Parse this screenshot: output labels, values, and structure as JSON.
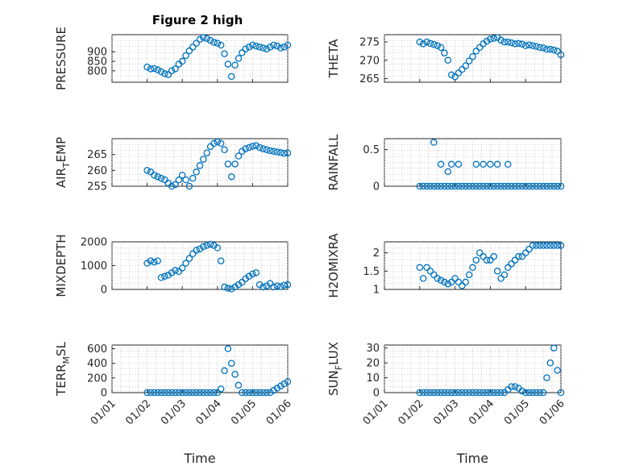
{
  "figure": {
    "title": "Figure 2 high",
    "marker_color": "#0072bd",
    "xlabel": "Time",
    "xticks": [
      "01/01",
      "01/02",
      "01/03",
      "01/04",
      "01/05",
      "01/06"
    ]
  },
  "chart_data": [
    {
      "type": "scatter",
      "id": "pressure",
      "ylabel": "PRESSURE",
      "title": "Figure 2 high",
      "xlim": [
        0,
        5
      ],
      "ylim": [
        740,
        990
      ],
      "yticks": [
        800,
        850,
        900
      ],
      "ytick_labels": [
        "800",
        "850",
        "900"
      ],
      "x": [
        1.0,
        1.1,
        1.2,
        1.3,
        1.4,
        1.5,
        1.6,
        1.7,
        1.8,
        1.9,
        2.0,
        2.1,
        2.2,
        2.3,
        2.4,
        2.5,
        2.6,
        2.7,
        2.8,
        2.9,
        3.0,
        3.1,
        3.2,
        3.3,
        3.4,
        3.5,
        3.6,
        3.7,
        3.8,
        3.9,
        4.0,
        4.1,
        4.2,
        4.3,
        4.4,
        4.5,
        4.6,
        4.7,
        4.8,
        4.9,
        5.0
      ],
      "y": [
        820,
        810,
        812,
        805,
        795,
        785,
        780,
        800,
        810,
        835,
        850,
        880,
        905,
        925,
        945,
        965,
        975,
        970,
        960,
        950,
        945,
        935,
        890,
        835,
        770,
        830,
        865,
        895,
        915,
        925,
        935,
        930,
        925,
        920,
        915,
        925,
        935,
        930,
        920,
        925,
        935
      ]
    },
    {
      "type": "scatter",
      "id": "theta",
      "ylabel": "THETA",
      "xlim": [
        0,
        5
      ],
      "ylim": [
        264,
        277
      ],
      "yticks": [
        265,
        270,
        275
      ],
      "ytick_labels": [
        "265",
        "270",
        "275"
      ],
      "x": [
        1.0,
        1.1,
        1.2,
        1.3,
        1.4,
        1.5,
        1.6,
        1.7,
        1.8,
        1.9,
        2.0,
        2.1,
        2.2,
        2.3,
        2.4,
        2.5,
        2.6,
        2.7,
        2.8,
        2.9,
        3.0,
        3.1,
        3.2,
        3.3,
        3.4,
        3.5,
        3.6,
        3.7,
        3.8,
        3.9,
        4.0,
        4.1,
        4.2,
        4.3,
        4.4,
        4.5,
        4.6,
        4.7,
        4.8,
        4.9,
        5.0
      ],
      "y": [
        275,
        274.5,
        275,
        274.6,
        274.3,
        274,
        273.5,
        272,
        270,
        266,
        265.5,
        266.5,
        267.5,
        268.5,
        269.8,
        271,
        272.5,
        273.5,
        274.5,
        275.2,
        275.8,
        276,
        276.2,
        275.5,
        275,
        275,
        274.8,
        274.5,
        274.6,
        274.4,
        274,
        274.2,
        274,
        273.8,
        273.5,
        273.4,
        273,
        273,
        272.8,
        272.5,
        271.5
      ]
    },
    {
      "type": "scatter",
      "id": "air_temp",
      "ylabel": "AIR",
      "ylabel_sub": "T",
      "ylabel_tail": "EMP",
      "xlim": [
        0,
        5
      ],
      "ylim": [
        255,
        270
      ],
      "yticks": [
        255,
        260,
        265
      ],
      "ytick_labels": [
        "255",
        "260",
        "265"
      ],
      "x": [
        1.0,
        1.1,
        1.2,
        1.3,
        1.4,
        1.5,
        1.6,
        1.7,
        1.8,
        1.9,
        2.0,
        2.1,
        2.2,
        2.3,
        2.4,
        2.5,
        2.6,
        2.7,
        2.8,
        2.9,
        3.0,
        3.1,
        3.2,
        3.3,
        3.4,
        3.5,
        3.6,
        3.7,
        3.8,
        3.9,
        4.0,
        4.1,
        4.2,
        4.3,
        4.4,
        4.5,
        4.6,
        4.7,
        4.8,
        4.9,
        5.0
      ],
      "y": [
        260,
        259.5,
        258.5,
        258,
        257.5,
        257,
        256,
        255,
        255.5,
        257,
        258.5,
        257,
        255,
        257.5,
        259.5,
        261.5,
        263.5,
        265.5,
        267.5,
        268.5,
        269,
        268.5,
        266.5,
        262,
        258,
        262,
        264.5,
        266,
        266.8,
        267.2,
        267.6,
        267.8,
        267.2,
        266.8,
        266.5,
        266.2,
        266,
        265.8,
        265.6,
        265.4,
        265.5
      ]
    },
    {
      "type": "scatter",
      "id": "rainfall",
      "ylabel": "RAINFALL",
      "xlim": [
        0,
        5
      ],
      "ylim": [
        0,
        0.65
      ],
      "yticks": [
        0,
        0.5
      ],
      "ytick_labels": [
        "0",
        "0.5"
      ],
      "x": [
        1.0,
        1.1,
        1.2,
        1.3,
        1.4,
        1.5,
        1.6,
        1.7,
        1.8,
        1.9,
        2.0,
        2.1,
        2.2,
        2.3,
        2.4,
        2.5,
        2.6,
        2.7,
        2.8,
        2.9,
        3.0,
        3.1,
        3.2,
        3.3,
        3.4,
        3.5,
        3.6,
        3.7,
        3.8,
        3.9,
        4.0,
        4.1,
        4.2,
        4.3,
        4.4,
        4.5,
        4.6,
        4.7,
        4.8,
        4.9,
        5.0,
        1.4,
        1.6,
        1.8,
        1.9,
        2.1,
        2.6,
        2.8,
        3.0,
        3.2,
        3.5
      ],
      "y": [
        0,
        0,
        0,
        0,
        0,
        0,
        0,
        0,
        0,
        0,
        0,
        0,
        0,
        0,
        0,
        0,
        0,
        0,
        0,
        0,
        0,
        0,
        0,
        0,
        0,
        0,
        0,
        0,
        0,
        0,
        0,
        0,
        0,
        0,
        0,
        0,
        0,
        0,
        0,
        0,
        0,
        0.6,
        0.3,
        0.2,
        0.3,
        0.3,
        0.3,
        0.3,
        0.3,
        0.3,
        0.3
      ]
    },
    {
      "type": "scatter",
      "id": "mixdepth",
      "ylabel": "MIXDEPTH",
      "xlim": [
        0,
        5
      ],
      "ylim": [
        0,
        2000
      ],
      "yticks": [
        0,
        1000,
        2000
      ],
      "ytick_labels": [
        "0",
        "1000",
        "2000"
      ],
      "x": [
        1.0,
        1.1,
        1.2,
        1.3,
        1.4,
        1.5,
        1.6,
        1.7,
        1.8,
        1.9,
        2.0,
        2.1,
        2.2,
        2.3,
        2.4,
        2.5,
        2.6,
        2.7,
        2.8,
        2.9,
        3.0,
        3.1,
        3.2,
        3.3,
        3.4,
        3.5,
        3.6,
        3.7,
        3.8,
        3.9,
        4.0,
        4.1,
        4.2,
        4.3,
        4.4,
        4.5,
        4.6,
        4.7,
        4.8,
        4.9,
        5.0
      ],
      "y": [
        1100,
        1200,
        1150,
        1200,
        500,
        550,
        600,
        700,
        800,
        750,
        900,
        1100,
        1300,
        1500,
        1650,
        1700,
        1800,
        1850,
        1900,
        1850,
        1750,
        1200,
        100,
        50,
        20,
        100,
        200,
        300,
        450,
        550,
        650,
        700,
        200,
        100,
        150,
        250,
        100,
        150,
        120,
        180,
        200
      ]
    },
    {
      "type": "scatter",
      "id": "h2omixra",
      "ylabel": "H2OMIXRA",
      "xlim": [
        0,
        5
      ],
      "ylim": [
        1,
        2.3
      ],
      "yticks": [
        1,
        1.5,
        2
      ],
      "ytick_labels": [
        "1",
        "1.5",
        "2"
      ],
      "x": [
        1.0,
        1.1,
        1.2,
        1.3,
        1.4,
        1.5,
        1.6,
        1.7,
        1.8,
        1.9,
        2.0,
        2.1,
        2.2,
        2.3,
        2.4,
        2.5,
        2.6,
        2.7,
        2.8,
        2.9,
        3.0,
        3.1,
        3.2,
        3.3,
        3.4,
        3.5,
        3.6,
        3.7,
        3.8,
        3.9,
        4.0,
        4.1,
        4.2,
        4.3,
        4.4,
        4.5,
        4.6,
        4.7,
        4.8,
        4.9,
        5.0
      ],
      "y": [
        1.6,
        1.3,
        1.6,
        1.5,
        1.4,
        1.3,
        1.25,
        1.2,
        1.15,
        1.2,
        1.3,
        1.2,
        1.1,
        1.2,
        1.4,
        1.6,
        1.8,
        2.0,
        1.9,
        1.8,
        1.8,
        1.9,
        1.5,
        1.3,
        1.4,
        1.6,
        1.7,
        1.8,
        1.9,
        1.9,
        2.0,
        2.1,
        2.2,
        2.2,
        2.2,
        2.2,
        2.2,
        2.2,
        2.2,
        2.2,
        2.2
      ]
    },
    {
      "type": "scatter",
      "id": "terr_msl",
      "ylabel": "TERR",
      "ylabel_sub": "M",
      "ylabel_tail": "SL",
      "xlim": [
        0,
        5
      ],
      "ylim": [
        0,
        650
      ],
      "yticks": [
        0,
        200,
        400,
        600
      ],
      "ytick_labels": [
        "0",
        "200",
        "400",
        "600"
      ],
      "x": [
        1.0,
        1.1,
        1.2,
        1.3,
        1.4,
        1.5,
        1.6,
        1.7,
        1.8,
        1.9,
        2.0,
        2.1,
        2.2,
        2.3,
        2.4,
        2.5,
        2.6,
        2.7,
        2.8,
        2.9,
        3.0,
        3.1,
        3.2,
        3.3,
        3.4,
        3.5,
        3.6,
        3.7,
        3.8,
        3.9,
        4.0,
        4.1,
        4.2,
        4.3,
        4.4,
        4.5,
        4.6,
        4.7,
        4.8,
        4.9,
        5.0
      ],
      "y": [
        0,
        0,
        0,
        0,
        0,
        0,
        0,
        0,
        0,
        0,
        0,
        0,
        0,
        0,
        0,
        0,
        0,
        0,
        0,
        0,
        0,
        50,
        300,
        600,
        400,
        250,
        100,
        0,
        0,
        0,
        0,
        0,
        0,
        0,
        0,
        0,
        30,
        60,
        90,
        120,
        150
      ]
    },
    {
      "type": "scatter",
      "id": "sun_flux",
      "ylabel": "SUN",
      "ylabel_sub": "F",
      "ylabel_tail": "LUX",
      "xlim": [
        0,
        5
      ],
      "ylim": [
        0,
        32
      ],
      "yticks": [
        0,
        10,
        20,
        30
      ],
      "ytick_labels": [
        "0",
        "10",
        "20",
        "30"
      ],
      "x": [
        1.0,
        1.1,
        1.2,
        1.3,
        1.4,
        1.5,
        1.6,
        1.7,
        1.8,
        1.9,
        2.0,
        2.1,
        2.2,
        2.3,
        2.4,
        2.5,
        2.6,
        2.7,
        2.8,
        2.9,
        3.0,
        3.1,
        3.2,
        3.3,
        3.4,
        3.5,
        3.6,
        3.7,
        3.8,
        3.9,
        4.0,
        4.1,
        4.2,
        4.3,
        4.4,
        4.5,
        4.6,
        4.7,
        4.8,
        4.9,
        5.0
      ],
      "y": [
        0,
        0,
        0,
        0,
        0,
        0,
        0,
        0,
        0,
        0,
        0,
        0,
        0,
        0,
        0,
        0,
        0,
        0,
        0,
        0,
        0,
        0,
        0,
        0,
        0,
        2,
        4,
        4,
        3,
        1,
        0,
        0,
        0,
        0,
        0,
        0,
        10,
        20,
        30,
        15,
        0
      ]
    }
  ]
}
